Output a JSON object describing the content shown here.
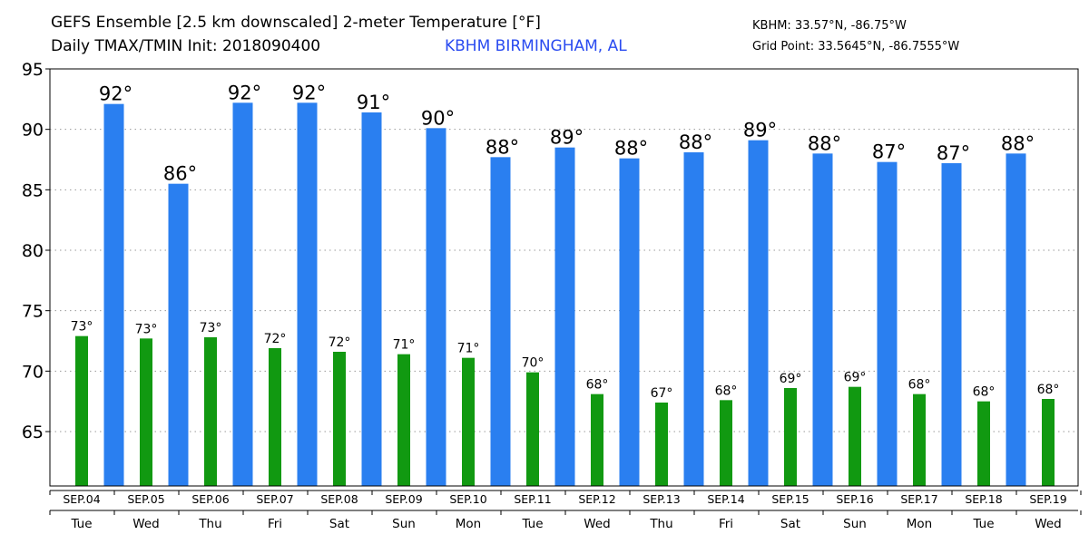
{
  "header": {
    "title": "GEFS Ensemble [2.5 km downscaled] 2-meter Temperature [°F]",
    "subtitle": "Daily TMAX/TMIN Init: 2018090400",
    "station": "KBHM BIRMINGHAM, AL",
    "station_coord": "KBHM: 33.57°N, -86.75°W",
    "grid_coord": "Grid Point: 33.5645°N, -86.7555°W"
  },
  "colors": {
    "tmax": "#2a7ff0",
    "tmin": "#119911"
  },
  "chart_data": {
    "type": "bar",
    "ylim": [
      60.5,
      95
    ],
    "yticks": [
      65,
      70,
      75,
      80,
      85,
      90,
      95
    ],
    "grid": true,
    "categories": [
      "SEP.04",
      "SEP.05",
      "SEP.06",
      "SEP.07",
      "SEP.08",
      "SEP.09",
      "SEP.10",
      "SEP.11",
      "SEP.12",
      "SEP.13",
      "SEP.14",
      "SEP.15",
      "SEP.16",
      "SEP.17",
      "SEP.18",
      "SEP.19"
    ],
    "days": [
      "Tue",
      "Wed",
      "Thu",
      "Fri",
      "Sat",
      "Sun",
      "Mon",
      "Tue",
      "Wed",
      "Thu",
      "Fri",
      "Sat",
      "Sun",
      "Mon",
      "Tue",
      "Wed"
    ],
    "tmin": {
      "values": [
        72.9,
        72.7,
        72.8,
        71.9,
        71.6,
        71.4,
        71.1,
        69.9,
        68.1,
        67.4,
        67.6,
        68.6,
        68.7,
        68.1,
        67.5,
        67.7
      ],
      "labels": [
        "73°",
        "73°",
        "73°",
        "72°",
        "72°",
        "71°",
        "71°",
        "70°",
        "68°",
        "67°",
        "68°",
        "69°",
        "69°",
        "68°",
        "68°",
        "68°"
      ]
    },
    "tmax": {
      "values": [
        92.1,
        85.5,
        92.2,
        92.2,
        91.4,
        90.1,
        87.7,
        88.5,
        87.6,
        88.1,
        89.1,
        88.0,
        87.3,
        87.2,
        88.0
      ],
      "labels": [
        "92°",
        "86°",
        "92°",
        "92°",
        "91°",
        "90°",
        "88°",
        "89°",
        "88°",
        "88°",
        "89°",
        "88°",
        "87°",
        "87°",
        "88°"
      ]
    }
  }
}
